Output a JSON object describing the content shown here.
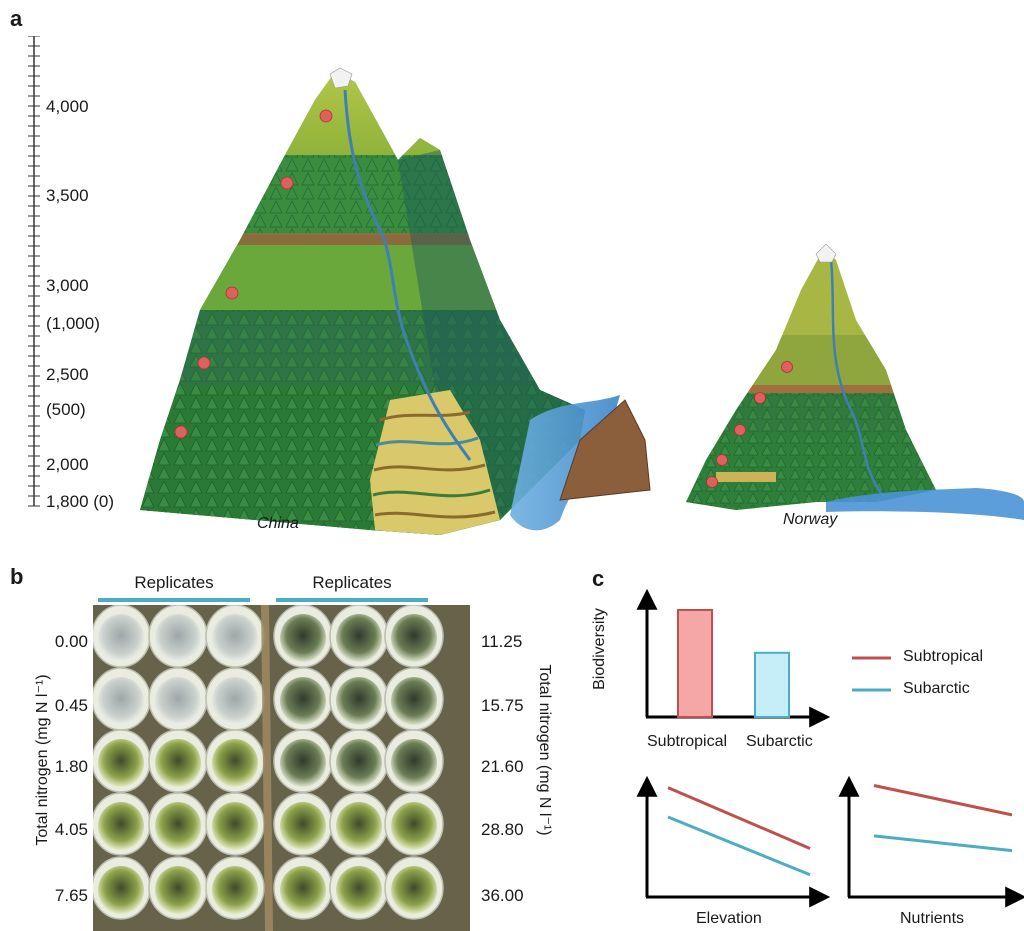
{
  "panels": {
    "a": "a",
    "b": "b",
    "c": "c"
  },
  "panel_a": {
    "ruler_labels": [
      "4,000",
      "3,500",
      "3,000",
      "(1,000)",
      "2,500",
      "(500)",
      "2,000",
      "1,800 (0)"
    ],
    "caption_left": "China",
    "caption_right": "Norway"
  },
  "panel_b": {
    "replicates_left": "Replicates",
    "replicates_right": "Replicates",
    "left_values": [
      "0.00",
      "0.45",
      "1.80",
      "4.05",
      "7.65"
    ],
    "right_values": [
      "11.25",
      "15.75",
      "21.60",
      "28.80",
      "36.00"
    ],
    "left_axis_label": "Total nitrogen (mg N l⁻¹)",
    "right_axis_label": "Total nitrogen (mg N l⁻¹)"
  },
  "panel_c": {
    "y_label": "Biodiversity",
    "bar_labels": [
      "Subtropical",
      "Subarctic"
    ],
    "legend": [
      {
        "label": "Subtropical",
        "color": "#c0504d"
      },
      {
        "label": "Subarctic",
        "color": "#4bacc6"
      }
    ],
    "x_label_left": "Elevation",
    "x_label_right": "Nutrients"
  },
  "chart_data": [
    {
      "type": "bar",
      "categories": [
        "Subtropical",
        "Subarctic"
      ],
      "values": [
        1.0,
        0.6
      ],
      "colors": [
        "#f4a7a5",
        "#c6eef8"
      ],
      "ylabel": "Biodiversity"
    },
    {
      "type": "line",
      "xlabel": "Elevation",
      "series": [
        {
          "name": "Subtropical",
          "x": [
            0,
            1
          ],
          "values": [
            0.88,
            0.3
          ],
          "color": "#c0504d"
        },
        {
          "name": "Subarctic",
          "x": [
            0,
            1
          ],
          "values": [
            0.6,
            0.05
          ],
          "color": "#4bacc6"
        }
      ]
    },
    {
      "type": "line",
      "xlabel": "Nutrients",
      "series": [
        {
          "name": "Subtropical",
          "x": [
            0,
            1
          ],
          "values": [
            0.9,
            0.62
          ],
          "color": "#c0504d"
        },
        {
          "name": "Subarctic",
          "x": [
            0,
            1
          ],
          "values": [
            0.42,
            0.28
          ],
          "color": "#4bacc6"
        }
      ]
    }
  ]
}
